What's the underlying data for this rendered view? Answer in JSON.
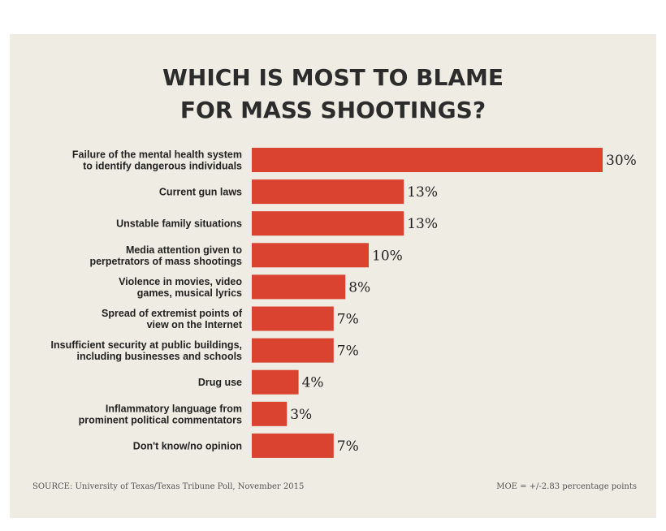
{
  "chart_data": {
    "type": "bar",
    "orientation": "horizontal",
    "title": [
      "WHICH IS MOST TO BLAME",
      "FOR MASS SHOOTINGS?"
    ],
    "categories": [
      [
        "Failure of the mental health system",
        "to identify dangerous individuals"
      ],
      [
        "Current gun laws"
      ],
      [
        "Unstable family situations"
      ],
      [
        "Media attention given to",
        "perpetrators of mass shootings"
      ],
      [
        "Violence in movies, video",
        "games, musical lyrics"
      ],
      [
        "Spread of extremist points of",
        "view on the Internet"
      ],
      [
        "Insufficient security at public buildings,",
        "including businesses and schools"
      ],
      [
        "Drug use"
      ],
      [
        "Inflammatory language from",
        "prominent political commentators"
      ],
      [
        "Don't know/no opinion"
      ]
    ],
    "values": [
      30,
      13,
      13,
      10,
      8,
      7,
      7,
      4,
      3,
      7
    ],
    "value_labels": [
      "30%",
      "13%",
      "13%",
      "10%",
      "8%",
      "7%",
      "7%",
      "4%",
      "3%",
      "7%"
    ],
    "bar_color": "#d9432f",
    "source": "SOURCE: University of Texas/Texas Tribune Poll, November 2015",
    "moe": "MOE = +/-2.83 percentage points"
  }
}
